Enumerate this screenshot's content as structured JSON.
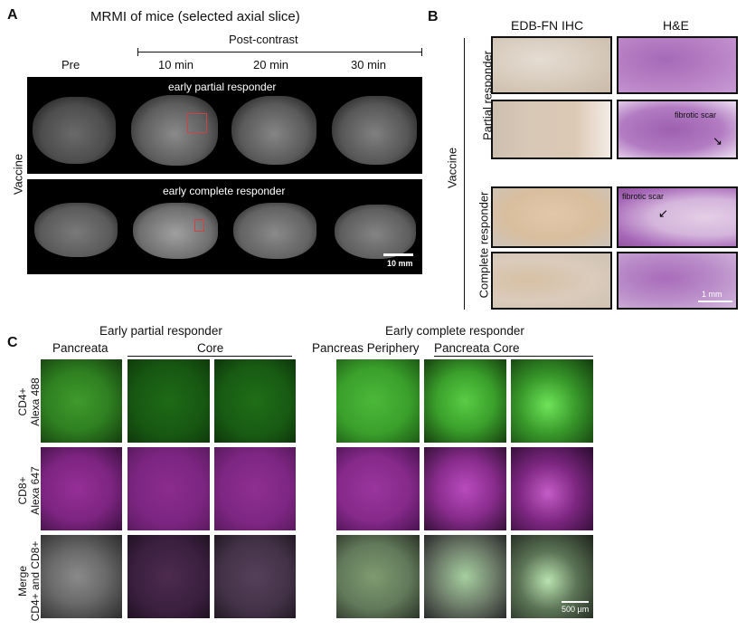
{
  "panel_a": {
    "letter": "A",
    "title": "MRMI of mice (selected axial slice)",
    "post_contrast_label": "Post-contrast",
    "columns": [
      "Pre",
      "10 min",
      "20 min",
      "30 min"
    ],
    "group_label": "Vaccine",
    "row1_label": "early partial responder",
    "row2_label": "early complete responder",
    "scale_bar": "10 mm"
  },
  "panel_b": {
    "letter": "B",
    "columns": [
      "EDB-FN IHC",
      "H&E"
    ],
    "group_label": "Vaccine",
    "row_group1": "Partial responder",
    "row_group2": "Complete responder",
    "annotation1": "fibrotic scar",
    "annotation2": "fibrotic scar",
    "scale_bar": "1 mm"
  },
  "panel_c": {
    "letter": "C",
    "left_title": "Early partial responder",
    "left_col1": "Pancreata",
    "left_col2": "Core",
    "right_title": "Early complete responder",
    "right_col1": "Pancreas Periphery",
    "right_col2": "Pancreata Core",
    "row1_line1": "CD4+",
    "row1_line2": "Alexa 488",
    "row2_line1": "CD8+",
    "row2_line2": "Alexa 647",
    "row3_line1": "Merge",
    "row3_line2": "CD4+ and CD8+",
    "scale_bar": "500 µm"
  }
}
